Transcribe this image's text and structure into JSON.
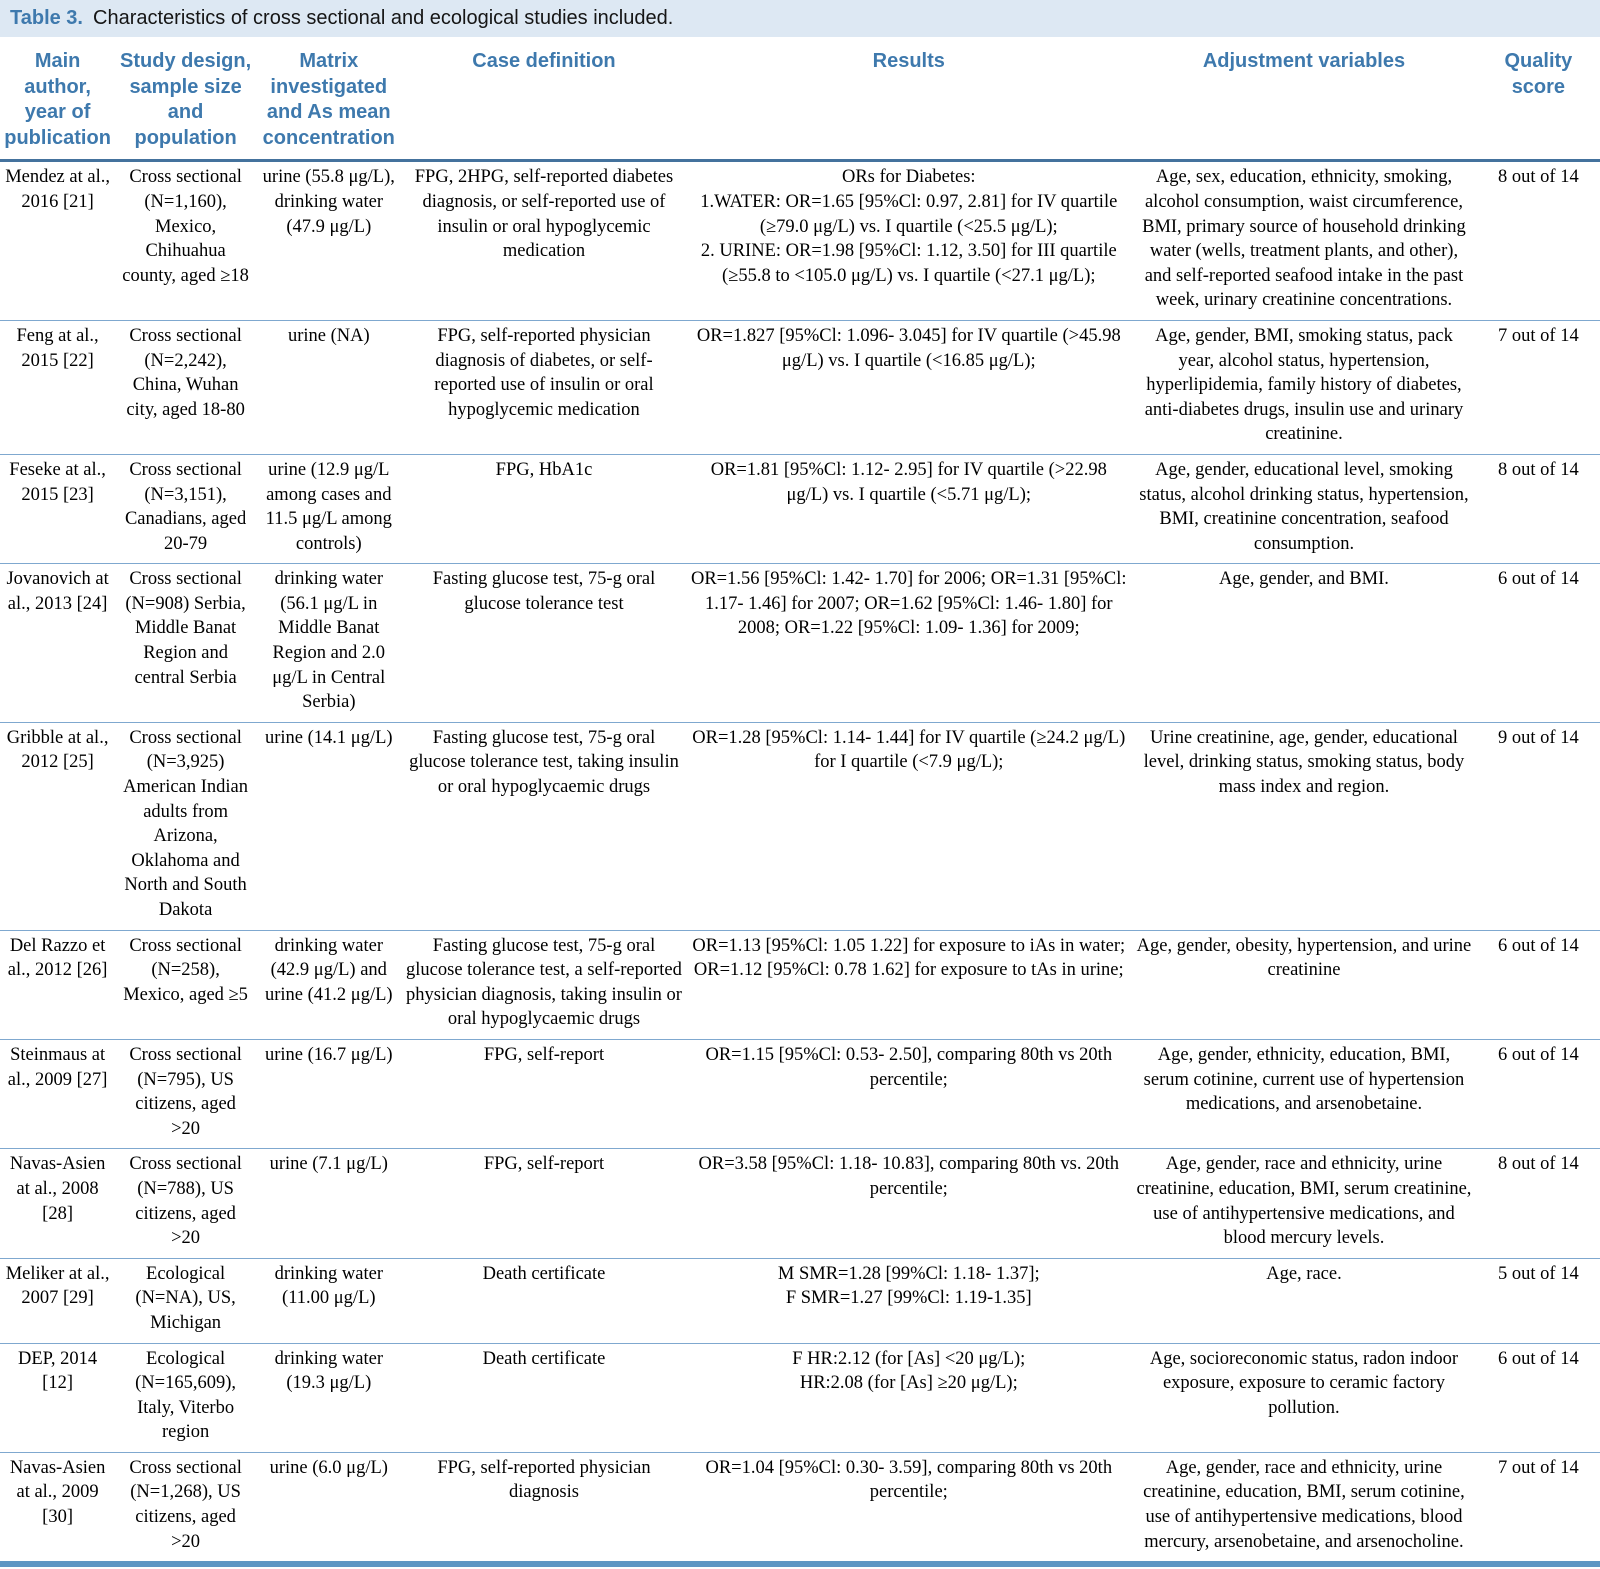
{
  "title": {
    "label": "Table 3.",
    "text": "Characteristics of cross sectional and ecological studies included."
  },
  "table": {
    "columns": [
      "Main author, year of publication",
      "Study design, sample size and population",
      "Matrix investigated and As mean concentration",
      "Case definition",
      "Results",
      "Adjustment variables",
      "Quality score"
    ],
    "rows": [
      [
        "Mendez at al., 2016 [21]",
        "Cross sectional (N=1,160), Mexico, Chihuahua county, aged ≥18",
        "urine (55.8 μg/L), drinking water (47.9 μg/L)",
        "FPG, 2HPG, self-reported diabetes diagnosis, or self-reported use of insulin or oral hypoglycemic medication",
        "ORs for Diabetes:\n1.WATER: OR=1.65 [95%Cl: 0.97, 2.81] for IV quartile (≥79.0 μg/L) vs. I quartile (<25.5 μg/L);\n2. URINE: OR=1.98 [95%Cl: 1.12, 3.50] for III quartile (≥55.8 to <105.0 μg/L) vs. I quartile (<27.1 μg/L);",
        "Age, sex, education, ethnicity, smoking, alcohol consumption, waist circumference, BMI, primary source of household drinking water (wells, treatment plants, and other), and self-reported seafood intake in the past week, urinary creatinine concentrations.",
        "8 out of 14"
      ],
      [
        "Feng at al., 2015 [22]",
        "Cross sectional (N=2,242), China, Wuhan city, aged 18-80",
        "urine (NA)",
        "FPG, self-reported physician diagnosis of diabetes, or self-reported use of insulin or oral hypoglycemic medication",
        "OR=1.827 [95%Cl: 1.096- 3.045] for IV quartile (>45.98 μg/L) vs. I quartile (<16.85 μg/L);",
        "Age, gender, BMI, smoking status, pack year, alcohol status, hypertension, hyperlipidemia, family history of diabetes, anti-diabetes drugs, insulin use and urinary creatinine.",
        "7 out of 14"
      ],
      [
        "Feseke at al., 2015 [23]",
        "Cross sectional (N=3,151), Canadians, aged 20-79",
        "urine (12.9 μg/L among cases and 11.5 μg/L among controls)",
        "FPG, HbA1c",
        "OR=1.81 [95%Cl: 1.12- 2.95] for IV quartile (>22.98 μg/L) vs. I quartile (<5.71 μg/L);",
        "Age, gender, educational level, smoking status, alcohol drinking status, hypertension, BMI, creatinine concentration, seafood consumption.",
        "8 out of 14"
      ],
      [
        "Jovanovich at al., 2013 [24]",
        "Cross sectional (N=908) Serbia, Middle Banat Region and central Serbia",
        "drinking water (56.1 μg/L in Middle Banat Region and 2.0 μg/L in Central Serbia)",
        "Fasting glucose test, 75-g oral glucose tolerance test",
        "OR=1.56 [95%Cl: 1.42- 1.70] for 2006; OR=1.31 [95%Cl: 1.17- 1.46] for 2007; OR=1.62 [95%Cl: 1.46- 1.80] for 2008; OR=1.22 [95%Cl: 1.09- 1.36] for 2009;",
        "Age, gender, and BMI.",
        "6 out of 14"
      ],
      [
        "Gribble at al., 2012 [25]",
        "Cross sectional (N=3,925) American Indian adults from Arizona, Oklahoma and North and South Dakota",
        "urine (14.1 μg/L)",
        "Fasting glucose test, 75-g oral glucose tolerance test, taking insulin or oral hypoglycaemic drugs",
        "OR=1.28 [95%Cl: 1.14- 1.44] for IV quartile (≥24.2 μg/L) for I quartile (<7.9 μg/L);",
        "Urine creatinine, age, gender, educational level, drinking status, smoking status, body mass index and region.",
        "9 out of 14"
      ],
      [
        "Del Razzo et al., 2012 [26]",
        "Cross sectional (N=258), Mexico, aged ≥5",
        "drinking water (42.9 μg/L) and urine (41.2 μg/L)",
        "Fasting glucose test, 75-g oral glucose tolerance test, a self-reported physician diagnosis, taking insulin or oral hypoglycaemic drugs",
        "OR=1.13 [95%Cl: 1.05 1.22] for exposure to iAs in water;\nOR=1.12 [95%Cl: 0.78 1.62] for exposure to tAs in urine;",
        "Age, gender, obesity, hypertension, and urine creatinine",
        "6 out of 14"
      ],
      [
        "Steinmaus at al., 2009 [27]",
        "Cross sectional (N=795), US citizens, aged >20",
        "urine (16.7 μg/L)",
        "FPG, self-report",
        "OR=1.15 [95%Cl: 0.53- 2.50], comparing 80th vs 20th percentile;",
        "Age, gender, ethnicity, education, BMI, serum cotinine, current use of hypertension medications, and arsenobetaine.",
        "6 out of 14"
      ],
      [
        "Navas-Asien at al., 2008 [28]",
        "Cross sectional (N=788), US citizens, aged >20",
        "urine (7.1 μg/L)",
        "FPG, self-report",
        "OR=3.58 [95%Cl: 1.18- 10.83], comparing 80th vs. 20th percentile;",
        "Age, gender, race and ethnicity, urine creatinine, education, BMI, serum creatinine, use of antihypertensive medications, and blood mercury levels.",
        "8 out of 14"
      ],
      [
        "Meliker at al., 2007 [29]",
        "Ecological (N=NA), US, Michigan",
        "drinking water (11.00 μg/L)",
        "Death certificate",
        "M SMR=1.28 [99%Cl: 1.18- 1.37];\nF SMR=1.27 [99%Cl: 1.19-1.35]",
        "Age, race.",
        "5 out of 14"
      ],
      [
        "DEP, 2014 [12]",
        "Ecological (N=165,609), Italy, Viterbo region",
        "drinking water (19.3 μg/L)",
        "Death certificate",
        "F HR:2.12 (for [As] <20 μg/L);\nHR:2.08 (for [As] ≥20 μg/L);",
        "Age, socioreconomic status, radon indoor exposure, exposure to ceramic factory pollution.",
        "6 out of 14"
      ],
      [
        "Navas-Asien at al., 2009 [30]",
        "Cross sectional (N=1,268), US citizens, aged >20",
        "urine (6.0 μg/L)",
        "FPG, self-reported physician diagnosis",
        "OR=1.04 [95%Cl: 0.30- 3.59], comparing 80th vs 20th percentile;",
        "Age, gender, race and ethnicity, urine creatinine, education, BMI, serum cotinine, use of antihypertensive medications, blood mercury, arsenobetaine, and arsenocholine.",
        "7 out of 14"
      ]
    ]
  },
  "colors": {
    "accent_blue": "#3e79ad",
    "title_bar_bg": "#dde8f3",
    "rule_light": "#7fa8cf",
    "rule_dark": "#44729d",
    "rule_bottom": "#5e96c3"
  }
}
